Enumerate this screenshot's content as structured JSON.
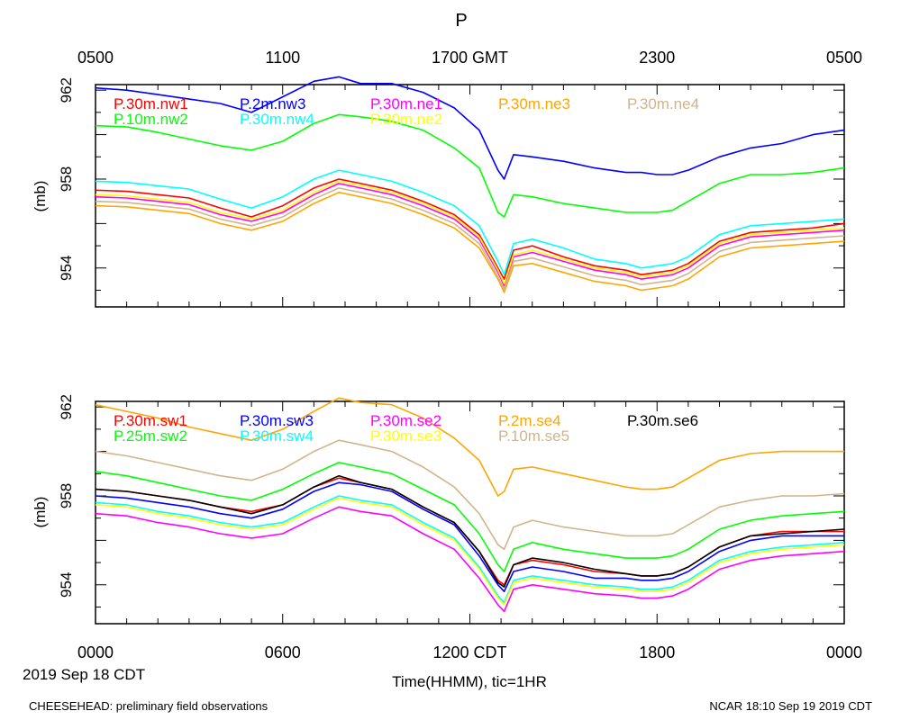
{
  "title": "P",
  "top_axis": {
    "labels": [
      "0500",
      "1100",
      "1700 GMT",
      "2300",
      "0500"
    ],
    "hours": [
      0,
      6,
      12,
      18,
      24
    ]
  },
  "bottom_axis": {
    "labels": [
      "0000",
      "0600",
      "1200 CDT",
      "1800",
      "0000"
    ],
    "hours": [
      0,
      6,
      12,
      18,
      24
    ]
  },
  "date_label": "2019 Sep 18 CDT",
  "xlabel": "Time(HHMM), tic=1HR",
  "footer_left": "CHEESEHEAD: preliminary field observations",
  "footer_right": "NCAR 18:10 Sep 19 2019 CDT",
  "chart_data": [
    {
      "type": "line",
      "panel": "top",
      "ylabel": "(mb)",
      "ylim": [
        952.25,
        962.25
      ],
      "yticks": [
        954,
        958,
        962
      ],
      "xlim": [
        0,
        24
      ],
      "x_hours": [
        0,
        1,
        2,
        3,
        4,
        5,
        6,
        7,
        7.8,
        8.5,
        9.5,
        10.5,
        11.5,
        12.3,
        12.9,
        13.1,
        13.4,
        14,
        15,
        16,
        17,
        17.5,
        18,
        18.5,
        19,
        20,
        21,
        22,
        23,
        24
      ],
      "series": [
        {
          "name": "P.30m.nw1",
          "color": "#ff0000",
          "values": [
            957.5,
            957.45,
            957.3,
            957.15,
            956.7,
            956.3,
            956.8,
            957.6,
            958.0,
            957.8,
            957.5,
            957.0,
            956.4,
            955.5,
            954.0,
            953.5,
            954.8,
            955.0,
            954.5,
            954.1,
            953.9,
            953.7,
            953.8,
            953.9,
            954.2,
            955.2,
            955.6,
            955.7,
            955.8,
            956.0
          ]
        },
        {
          "name": "P.2m.nw3",
          "color": "#0000ff",
          "values": [
            962.1,
            962.0,
            961.8,
            961.6,
            961.4,
            961.0,
            961.7,
            962.4,
            962.6,
            962.3,
            962.3,
            961.9,
            961.2,
            960.2,
            958.4,
            958.0,
            959.1,
            959.0,
            958.8,
            958.5,
            958.3,
            958.3,
            958.2,
            958.2,
            958.4,
            959.0,
            959.4,
            959.6,
            960.0,
            960.2
          ]
        },
        {
          "name": "P.30m.ne1",
          "color": "#ff00ff",
          "values": [
            957.2,
            957.15,
            957.0,
            956.85,
            956.4,
            956.1,
            956.5,
            957.3,
            957.8,
            957.6,
            957.3,
            956.8,
            956.2,
            955.3,
            953.8,
            953.2,
            954.5,
            954.7,
            954.3,
            953.9,
            953.7,
            953.5,
            953.6,
            953.7,
            954.0,
            955.0,
            955.4,
            955.5,
            955.6,
            955.7
          ]
        },
        {
          "name": "P.30m.ne3",
          "color": "#ffa500",
          "values": [
            956.8,
            956.75,
            956.6,
            956.45,
            956.0,
            955.7,
            956.1,
            956.9,
            957.4,
            957.2,
            956.9,
            956.4,
            955.8,
            954.9,
            953.5,
            952.9,
            954.1,
            954.2,
            953.8,
            953.4,
            953.2,
            953.0,
            953.1,
            953.2,
            953.5,
            954.5,
            954.9,
            955.0,
            955.1,
            955.2
          ]
        },
        {
          "name": "P.30m.ne4",
          "color": "#d2b48c",
          "values": [
            957.0,
            956.95,
            956.8,
            956.65,
            956.2,
            955.9,
            956.3,
            957.1,
            957.6,
            957.4,
            957.1,
            956.6,
            956.0,
            955.1,
            953.6,
            953.05,
            954.3,
            954.45,
            954.05,
            953.65,
            953.45,
            953.25,
            953.35,
            953.45,
            953.75,
            954.75,
            955.15,
            955.25,
            955.35,
            955.45
          ]
        },
        {
          "name": "P.10m.nw2",
          "color": "#00ff00",
          "values": [
            960.4,
            960.35,
            960.1,
            959.8,
            959.5,
            959.3,
            959.7,
            960.5,
            960.9,
            960.8,
            960.6,
            960.2,
            959.4,
            958.5,
            956.5,
            956.3,
            957.3,
            957.2,
            956.9,
            956.7,
            956.5,
            956.5,
            956.5,
            956.6,
            957.0,
            957.8,
            958.2,
            958.2,
            958.3,
            958.5
          ]
        },
        {
          "name": "P.30m.nw4",
          "color": "#00ffff",
          "values": [
            957.9,
            957.85,
            957.7,
            957.55,
            957.1,
            956.7,
            957.2,
            958.0,
            958.4,
            958.2,
            957.9,
            957.4,
            956.8,
            955.9,
            954.3,
            953.7,
            955.1,
            955.3,
            954.9,
            954.4,
            954.2,
            954.0,
            954.1,
            954.2,
            954.5,
            955.5,
            955.9,
            956.0,
            956.1,
            956.2
          ]
        },
        {
          "name": "P.30m.ne2",
          "color": "#ffff00",
          "values": [
            957.3,
            957.25,
            957.1,
            956.95,
            956.5,
            956.2,
            956.6,
            957.4,
            957.9,
            957.7,
            957.4,
            956.9,
            956.3,
            955.4,
            953.9,
            953.3,
            954.6,
            954.8,
            954.4,
            954.0,
            953.8,
            953.6,
            953.7,
            953.8,
            954.1,
            955.1,
            955.5,
            955.6,
            955.7,
            955.8
          ]
        }
      ]
    },
    {
      "type": "line",
      "panel": "bottom",
      "ylabel": "(mb)",
      "ylim": [
        952.25,
        962.25
      ],
      "yticks": [
        954,
        958,
        962
      ],
      "xlim": [
        0,
        24
      ],
      "x_hours": [
        0,
        1,
        2,
        3,
        4,
        5,
        6,
        7,
        7.8,
        8.5,
        9.5,
        10.5,
        11.5,
        12.3,
        12.9,
        13.1,
        13.4,
        14,
        15,
        16,
        17,
        17.5,
        18,
        18.5,
        19,
        20,
        21,
        22,
        23,
        24
      ],
      "series": [
        {
          "name": "P.30m.sw1",
          "color": "#ff0000",
          "values": [
            958.3,
            958.2,
            958.0,
            957.8,
            957.5,
            957.3,
            957.6,
            958.4,
            958.8,
            958.6,
            958.3,
            957.5,
            956.8,
            955.5,
            954.2,
            954.0,
            954.9,
            955.1,
            954.9,
            954.6,
            954.5,
            954.4,
            954.4,
            954.5,
            954.8,
            955.7,
            956.2,
            956.4,
            956.4,
            956.4
          ]
        },
        {
          "name": "P.30m.sw3",
          "color": "#0000ff",
          "values": [
            958.0,
            957.9,
            957.7,
            957.5,
            957.2,
            957.0,
            957.4,
            958.2,
            958.6,
            958.5,
            958.2,
            957.4,
            956.7,
            955.3,
            954.0,
            953.7,
            954.6,
            954.8,
            954.6,
            954.3,
            954.3,
            954.2,
            954.2,
            954.3,
            954.6,
            955.5,
            956.0,
            956.2,
            956.2,
            956.2
          ]
        },
        {
          "name": "P.30m.se2",
          "color": "#ff00ff",
          "values": [
            957.2,
            957.1,
            956.8,
            956.6,
            956.3,
            956.1,
            956.3,
            957.0,
            957.5,
            957.3,
            957.1,
            956.3,
            955.6,
            954.3,
            953.1,
            952.8,
            953.8,
            954.0,
            953.8,
            953.6,
            953.5,
            953.4,
            953.4,
            953.5,
            953.8,
            954.7,
            955.1,
            955.3,
            955.4,
            955.5
          ]
        },
        {
          "name": "P.2m.se4",
          "color": "#ffa500",
          "values": [
            962.1,
            961.8,
            961.5,
            961.1,
            960.8,
            960.5,
            961.0,
            961.8,
            962.4,
            962.2,
            962.1,
            961.5,
            960.6,
            959.6,
            958.0,
            958.2,
            959.2,
            959.3,
            959.0,
            958.7,
            958.4,
            958.3,
            958.3,
            958.4,
            958.8,
            959.6,
            959.9,
            960.0,
            960.0,
            960.0
          ]
        },
        {
          "name": "P.30m.se6",
          "color": "#000000",
          "values": [
            958.3,
            958.2,
            958.0,
            957.8,
            957.5,
            957.2,
            957.6,
            958.4,
            958.9,
            958.6,
            958.3,
            957.5,
            956.8,
            955.5,
            954.1,
            953.9,
            954.9,
            955.2,
            955.0,
            954.7,
            954.5,
            954.4,
            954.4,
            954.5,
            954.8,
            955.7,
            956.2,
            956.3,
            956.4,
            956.5
          ]
        },
        {
          "name": "P.25m.sw2",
          "color": "#00ff00",
          "values": [
            959.1,
            958.9,
            958.6,
            958.3,
            958.0,
            957.8,
            958.3,
            959.0,
            959.5,
            959.3,
            959.0,
            958.3,
            957.6,
            956.3,
            954.9,
            954.6,
            955.6,
            955.9,
            955.6,
            955.4,
            955.2,
            955.2,
            955.2,
            955.3,
            955.6,
            956.5,
            956.9,
            957.1,
            957.2,
            957.3
          ]
        },
        {
          "name": "P.30m.sw4",
          "color": "#00ffff",
          "values": [
            957.7,
            957.6,
            957.3,
            957.1,
            956.8,
            956.6,
            956.8,
            957.5,
            958.0,
            957.8,
            957.6,
            956.8,
            956.1,
            954.8,
            953.5,
            953.2,
            954.2,
            954.4,
            954.2,
            954.0,
            953.9,
            953.8,
            953.8,
            953.9,
            954.2,
            955.1,
            955.5,
            955.7,
            955.8,
            955.9
          ]
        },
        {
          "name": "P.30m.se3",
          "color": "#ffff00",
          "values": [
            957.6,
            957.5,
            957.2,
            957.0,
            956.7,
            956.5,
            956.7,
            957.4,
            957.9,
            957.7,
            957.5,
            956.7,
            956.0,
            954.7,
            953.4,
            953.1,
            954.1,
            954.3,
            954.1,
            953.9,
            953.8,
            953.7,
            953.7,
            953.8,
            954.1,
            955.0,
            955.4,
            955.6,
            955.7,
            955.8
          ]
        },
        {
          "name": "P.10m.se5",
          "color": "#d2b48c",
          "values": [
            960.0,
            959.8,
            959.5,
            959.2,
            958.9,
            958.7,
            959.2,
            960.0,
            960.5,
            960.3,
            960.0,
            959.3,
            958.4,
            957.2,
            955.8,
            955.6,
            956.6,
            956.9,
            956.6,
            956.4,
            956.2,
            956.2,
            956.2,
            956.3,
            956.7,
            957.5,
            957.8,
            958.0,
            958.0,
            958.1
          ]
        }
      ]
    }
  ]
}
